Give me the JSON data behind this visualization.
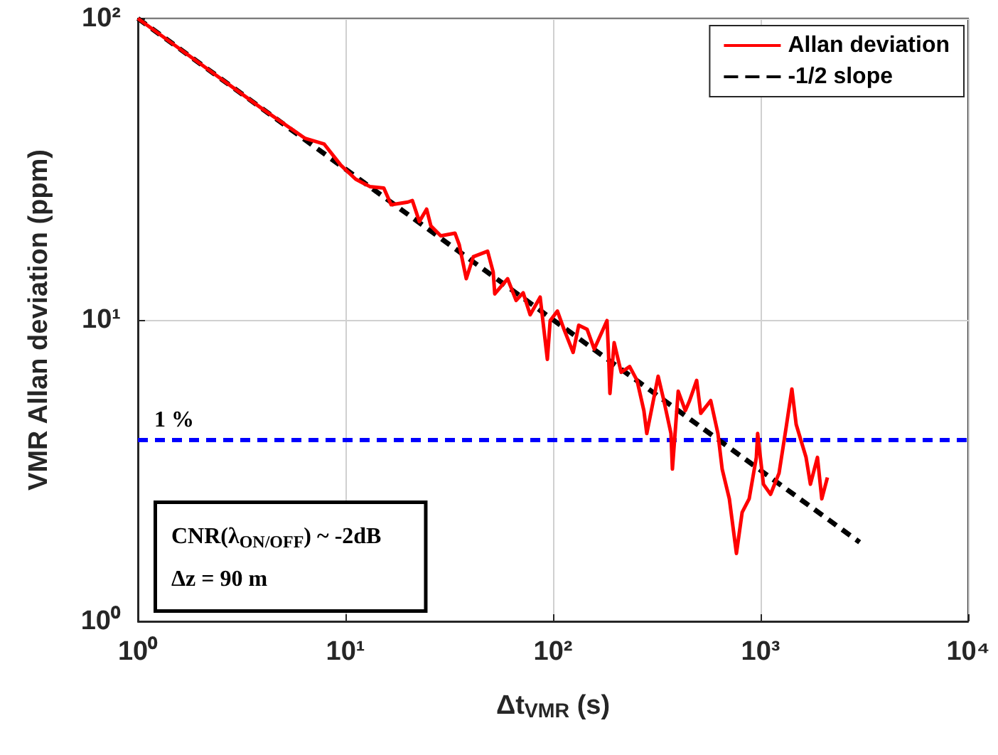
{
  "chart_data": {
    "type": "line",
    "xlabel": "Δt$_{VMR}$ (s)",
    "ylabel": "VMR Allan deviation (ppm)",
    "log": "xy",
    "xlim": [
      1,
      10000
    ],
    "xticks": [
      {
        "value": 1,
        "label": "10⁰"
      },
      {
        "value": 10,
        "label": "10¹"
      },
      {
        "value": 100,
        "label": "10²"
      },
      {
        "value": 1000,
        "label": "10³"
      },
      {
        "value": 10000,
        "label": "10⁴"
      }
    ],
    "ylim": [
      1,
      100
    ],
    "yticks": [
      {
        "value": 1,
        "label": "10⁰"
      },
      {
        "value": 10,
        "label": "10¹"
      },
      {
        "value": 100,
        "label": "10²"
      }
    ],
    "grid": true,
    "legend": "top right",
    "marker": "none",
    "series": [
      {
        "name": "Allan deviation",
        "color": "#ff0000",
        "line_style": "solid",
        "x": [
          1,
          2,
          4,
          6.4,
          7.9,
          9.5,
          11.2,
          13.1,
          15.3,
          16.6,
          20.0,
          21.0,
          22.7,
          24.6,
          25.8,
          28.8,
          33.7,
          35.3,
          38.2,
          41.3,
          48.4,
          51.5,
          52.4,
          60.4,
          66.4,
          71.8,
          77.6,
          86.7,
          93.9,
          96.9,
          105,
          113,
          125,
          133,
          146,
          158,
          182,
          185,
          188,
          197,
          213,
          234,
          254,
          274,
          283,
          321,
          342,
          370,
          376,
          401,
          434,
          455,
          492,
          515,
          575,
          623,
          653,
          707,
          765,
          815,
          881,
          954,
          968,
          1032,
          1117,
          1227,
          1328,
          1415,
          1484,
          1656,
          1738,
          1879,
          1972,
          2099
        ],
        "values": [
          100,
          70.7,
          50,
          40,
          38.3,
          32.6,
          29.3,
          27.7,
          27.4,
          24.1,
          24.6,
          24.9,
          21.2,
          23.3,
          20.5,
          19.0,
          19.4,
          17.8,
          13.7,
          16.2,
          16.9,
          14.4,
          12.2,
          13.7,
          11.6,
          12.3,
          10.4,
          11.9,
          7.4,
          9.95,
          10.7,
          9.3,
          7.8,
          9.6,
          9.3,
          8.0,
          9.95,
          7.8,
          5.7,
          8.4,
          6.7,
          7.0,
          6.3,
          5.0,
          4.2,
          6.5,
          5.4,
          4.2,
          3.2,
          5.8,
          5.0,
          5.4,
          6.3,
          4.9,
          5.4,
          4.2,
          3.2,
          2.55,
          1.68,
          2.3,
          2.55,
          3.5,
          4.2,
          2.85,
          2.64,
          3.1,
          4.4,
          5.9,
          4.5,
          3.5,
          2.85,
          3.5,
          2.55,
          3.0
        ]
      },
      {
        "name": "-1/2 slope",
        "color": "#000000",
        "line_style": "dashed",
        "x": [
          1,
          3000
        ],
        "values": [
          100,
          1.83
        ]
      }
    ],
    "ref_lines": [
      {
        "axis": "y",
        "value": 4,
        "color": "#0000ff",
        "line_style": "dashed"
      }
    ],
    "annotations": [
      {
        "text": "1 %",
        "x": 1.2,
        "y": 4
      },
      "CNR(λ$_{ON/OFF}$) ~ -2dB",
      "Δz = 90 m"
    ]
  }
}
